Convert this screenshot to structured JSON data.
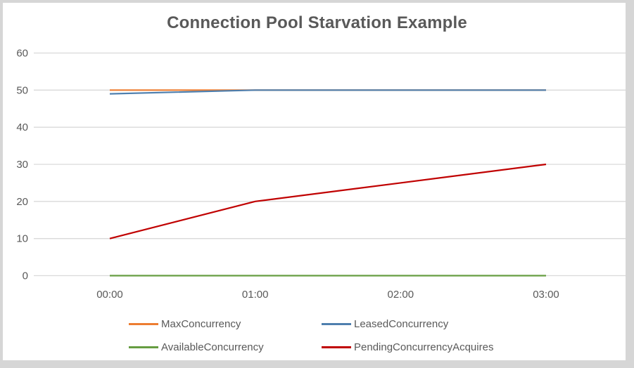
{
  "title": "Connection Pool Starvation Example",
  "frame": {
    "border_color": "#d6d6d6",
    "background": "#ffffff"
  },
  "chart_data": {
    "type": "line",
    "title": "Connection Pool Starvation Example",
    "categories": [
      "00:00",
      "01:00",
      "02:00",
      "03:00"
    ],
    "series": [
      {
        "name": "MaxConcurrency",
        "color": "#ED7D31",
        "values": [
          50,
          50,
          50,
          50
        ]
      },
      {
        "name": "LeasedConcurrency",
        "color": "#4E7FAE",
        "values": [
          49,
          50,
          50,
          50
        ]
      },
      {
        "name": "AvailableConcurrency",
        "color": "#669D41",
        "values": [
          0,
          0,
          0,
          0
        ]
      },
      {
        "name": "PendingConcurrencyAcquires",
        "color": "#C00000",
        "values": [
          10,
          20,
          25,
          30
        ]
      }
    ],
    "xlabel": "",
    "ylabel": "",
    "ylim": [
      0,
      60
    ],
    "yticks": [
      0,
      10,
      20,
      30,
      40,
      50,
      60
    ],
    "grid": true,
    "gridline_color": "#D9D9D9",
    "text_color": "#595959",
    "legend_position": "bottom"
  }
}
